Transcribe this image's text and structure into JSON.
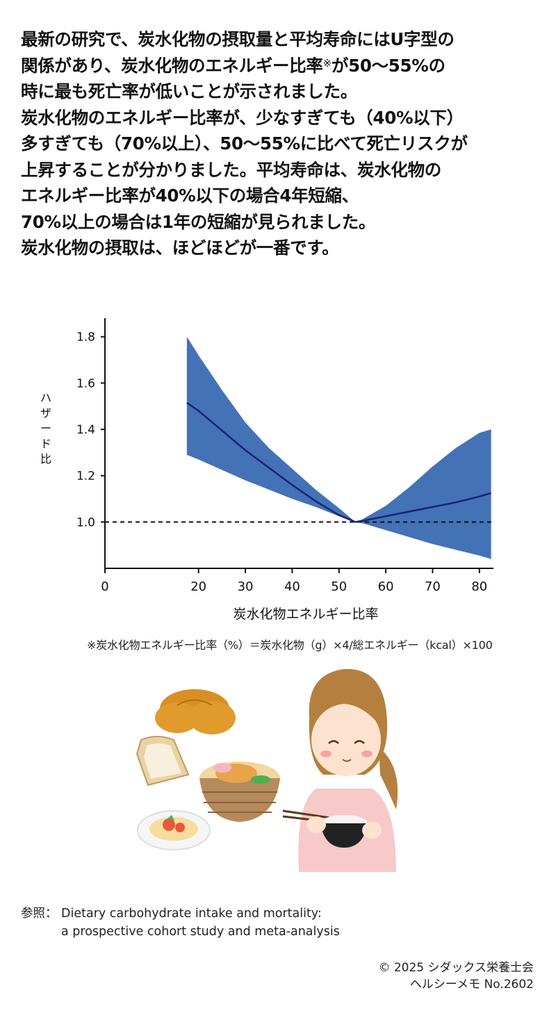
{
  "intro": {
    "line1": "最新の研究で、炭水化物の摂取量と平均寿命にはU字型の",
    "line2a": "関係があり、炭水化物のエネルギー比率",
    "line2_mark": "※",
    "line2b": "が50〜55%の",
    "line3": "時に最も死亡率が低いことが示されました。",
    "line4": "炭水化物のエネルギー比率が、少なすぎても（40%以下）",
    "line5": "多すぎても（70%以上）、50〜55%に比べて死亡リスクが",
    "line6": "上昇することが分かりました。平均寿命は、炭水化物の",
    "line7": "エネルギー比率が40%以下の場合4年短縮、",
    "line8": "70%以上の場合は1年の短縮が見られました。",
    "line9": "炭水化物の摂取は、ほどほどが一番です。"
  },
  "chart_data": {
    "type": "line",
    "title": "",
    "xlabel": "炭水化物エネルギー比率",
    "ylabel": "ハザード比",
    "xlim": [
      0,
      83
    ],
    "ylim": [
      0.8,
      1.85
    ],
    "x_ticks": [
      0,
      20,
      30,
      40,
      50,
      60,
      70,
      80
    ],
    "y_ticks": [
      1.0,
      1.2,
      1.4,
      1.6,
      1.8
    ],
    "x_tick_labels": [
      "0",
      "20",
      "30",
      "40",
      "50",
      "60",
      "70",
      "80"
    ],
    "y_tick_labels": [
      "1.0",
      "1.2",
      "1.4",
      "1.6",
      "1.8"
    ],
    "reference_line": 1.0,
    "grid": false,
    "colors": {
      "band": "#4472b7",
      "line": "#1a237e",
      "axis": "#111111"
    },
    "series": [
      {
        "x": [
          17.5,
          20,
          25,
          30,
          35,
          40,
          45,
          50,
          53.5,
          55,
          60,
          65,
          70,
          75,
          80,
          82.5
        ],
        "y": [
          1.515,
          1.48,
          1.395,
          1.31,
          1.235,
          1.16,
          1.09,
          1.03,
          1.0,
          1.005,
          1.025,
          1.045,
          1.065,
          1.085,
          1.11,
          1.125
        ],
        "lower": [
          1.29,
          1.27,
          1.225,
          1.18,
          1.14,
          1.1,
          1.065,
          1.025,
          1.0,
          0.995,
          0.965,
          0.935,
          0.905,
          0.88,
          0.855,
          0.84
        ],
        "upper": [
          1.8,
          1.72,
          1.57,
          1.43,
          1.32,
          1.23,
          1.14,
          1.06,
          1.0,
          1.012,
          1.07,
          1.15,
          1.24,
          1.32,
          1.385,
          1.4
        ]
      }
    ]
  },
  "note": "※炭水化物エネルギー比率（%）＝炭水化物（g）×4/総エネルギー（kcal）×100",
  "reference": {
    "label": "参照：",
    "line1": "Dietary carbohydrate intake and mortality:",
    "line2": "a prospective cohort study and meta-analysis"
  },
  "footer": {
    "copyright": "© 2025 シダックス栄養士会",
    "series": "ヘルシーメモ  No.2602"
  },
  "illustration": {
    "colors": {
      "hair": "#b5803f",
      "skin": "#fde3cf",
      "shirt": "#f7c9c9",
      "bowl": "#b58a5c",
      "bread": "#d98f23"
    }
  }
}
